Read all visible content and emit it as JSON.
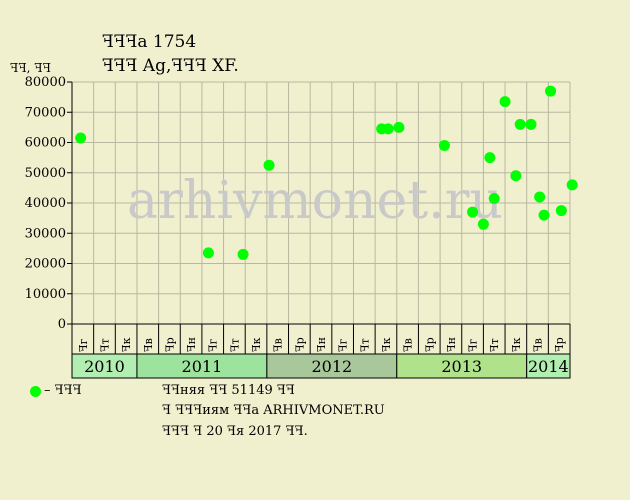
{
  "header": {
    "title": "ꟻꟻꟻa 1754",
    "subtitle": "ꟻꟻꟻ Ag,ꟻꟻꟻ XF.",
    "units": "ꟻꟻ, ꟻꟻ"
  },
  "watermark": "arhivmonet.ru",
  "legend": {
    "label": "– ꟻꟻꟻ",
    "color": "#00ff00"
  },
  "notes": {
    "line1": "ꟻꟻняя ꟻꟻ 51149 ꟻꟻ",
    "line2": "ꟻ ꟻꟻꟻиям ꟻꟻa ARHIVMONET.RU",
    "line3": "ꟻꟻꟻ ꟻ 20 ꟻя 2017 ꟻꟻ."
  },
  "chart_data": {
    "type": "scatter",
    "ylim": [
      0,
      80000
    ],
    "yticks": [
      0,
      10000,
      20000,
      30000,
      40000,
      50000,
      60000,
      70000,
      80000
    ],
    "grid": true,
    "x_tick_labels": [
      "ꟻг",
      "ꟻт",
      "ꟻк",
      "ꟻв",
      "ꟻр",
      "ꟻн",
      "ꟻг",
      "ꟻт",
      "ꟻк",
      "ꟻв",
      "ꟻр",
      "ꟻн",
      "ꟻг",
      "ꟻт",
      "ꟻк",
      "ꟻв",
      "ꟻр",
      "ꟻн",
      "ꟻг",
      "ꟻт",
      "ꟻк",
      "ꟻв",
      "ꟻр"
    ],
    "years": [
      {
        "label": "2010",
        "start": 0,
        "end": 3,
        "color": "#b2edb2"
      },
      {
        "label": "2011",
        "start": 3,
        "end": 9,
        "color": "#9de39d"
      },
      {
        "label": "2012",
        "start": 9,
        "end": 15,
        "color": "#a8c79a"
      },
      {
        "label": "2013",
        "start": 15,
        "end": 21,
        "color": "#b0e28c"
      },
      {
        "label": "2014",
        "start": 21,
        "end": 23,
        "color": "#b2edb2"
      }
    ],
    "series": [
      {
        "color": "#00ff00",
        "points": [
          {
            "x": 0.4,
            "y": 61500
          },
          {
            "x": 6.3,
            "y": 23500
          },
          {
            "x": 7.9,
            "y": 23000
          },
          {
            "x": 9.1,
            "y": 52500
          },
          {
            "x": 14.3,
            "y": 64500
          },
          {
            "x": 14.6,
            "y": 64500
          },
          {
            "x": 15.1,
            "y": 65000
          },
          {
            "x": 17.2,
            "y": 59000
          },
          {
            "x": 18.5,
            "y": 37000
          },
          {
            "x": 19.0,
            "y": 33000
          },
          {
            "x": 19.3,
            "y": 55000
          },
          {
            "x": 19.5,
            "y": 41500
          },
          {
            "x": 20.0,
            "y": 73500
          },
          {
            "x": 20.5,
            "y": 49000
          },
          {
            "x": 20.7,
            "y": 66000
          },
          {
            "x": 21.2,
            "y": 66000
          },
          {
            "x": 21.6,
            "y": 42000
          },
          {
            "x": 21.8,
            "y": 36000
          },
          {
            "x": 22.1,
            "y": 77000
          },
          {
            "x": 22.6,
            "y": 37500
          },
          {
            "x": 23.1,
            "y": 46000
          }
        ]
      }
    ]
  }
}
